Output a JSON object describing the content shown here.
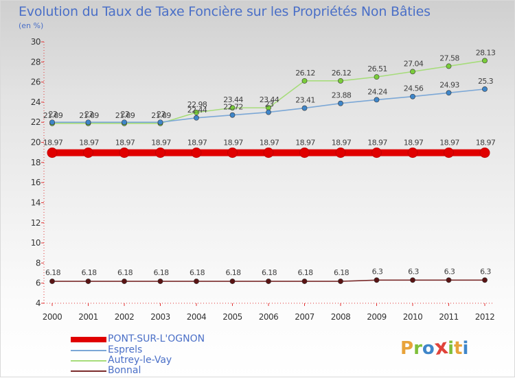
{
  "header": {
    "title": "Evolution du Taux de Taxe Foncière sur les Propriétés Non Bâties",
    "unit": "(en %)"
  },
  "chart_data": {
    "type": "line",
    "title": "Evolution du Taux de Taxe Foncière sur les Propriétés Non Bâties",
    "ylabel": "(en %)",
    "xlabel": "",
    "ylim": [
      4,
      30
    ],
    "yticks": [
      4,
      6,
      8,
      10,
      12,
      14,
      16,
      18,
      20,
      22,
      24,
      26,
      28,
      30
    ],
    "x": [
      "2000",
      "2001",
      "2002",
      "2003",
      "2004",
      "2005",
      "2006",
      "2007",
      "2008",
      "2009",
      "2010",
      "2011",
      "2012"
    ],
    "grid": false,
    "legend_position": "bottom-left",
    "series": [
      {
        "name": "PONT-SUR-L'OGNON",
        "color": "#e00000",
        "values": [
          18.97,
          18.97,
          18.97,
          18.97,
          18.97,
          18.97,
          18.97,
          18.97,
          18.97,
          18.97,
          18.97,
          18.97,
          18.97
        ],
        "labels": [
          "18.97",
          "18.97",
          "18.97",
          "18.97",
          "18.97",
          "18.97",
          "18.97",
          "18.97",
          "18.97",
          "18.97",
          "18.97",
          "18.97",
          "18.97"
        ]
      },
      {
        "name": "Esprels",
        "color": "#7ba7d6",
        "marker_color": "#3f86c9",
        "values": [
          22.0,
          22.0,
          22.0,
          22.0,
          22.44,
          22.72,
          23.0,
          23.41,
          23.88,
          24.24,
          24.56,
          24.93,
          25.3
        ],
        "labels": [
          "22",
          "22",
          "22",
          "22",
          "22.44",
          "22.72",
          "23",
          "23.41",
          "23.88",
          "24.24",
          "24.56",
          "24.93",
          "25.3"
        ]
      },
      {
        "name": "Autrey-le-Vay",
        "color": "#a6dc7a",
        "marker_color": "#7acc3a",
        "values": [
          21.89,
          21.89,
          21.89,
          21.89,
          22.98,
          23.44,
          23.44,
          26.12,
          26.12,
          26.51,
          27.04,
          27.58,
          28.13
        ],
        "labels": [
          "21.89",
          "21.89",
          "21.89",
          "21.89",
          "22.98",
          "23.44",
          "23.44",
          "26.12",
          "26.12",
          "26.51",
          "27.04",
          "27.58",
          "28.13"
        ]
      },
      {
        "name": "Bonnal",
        "color": "#7a2a2a",
        "marker_color": "#5a1414",
        "values": [
          6.18,
          6.18,
          6.18,
          6.18,
          6.18,
          6.18,
          6.18,
          6.18,
          6.18,
          6.3,
          6.3,
          6.3,
          6.3
        ],
        "labels": [
          "6.18",
          "6.18",
          "6.18",
          "6.18",
          "6.18",
          "6.18",
          "6.18",
          "6.18",
          "6.18",
          "6.3",
          "6.3",
          "6.3",
          "6.3"
        ]
      }
    ]
  },
  "legend": {
    "items": [
      {
        "label": "PONT-SUR-L'OGNON",
        "color": "#e00000"
      },
      {
        "label": "Esprels",
        "color": "#7ba7d6"
      },
      {
        "label": "Autrey-le-Vay",
        "color": "#a6dc7a"
      },
      {
        "label": "Bonnal",
        "color": "#7a2a2a"
      }
    ]
  },
  "branding": {
    "logo_text": "Proxiti",
    "logo_colors": [
      "#e8a33a",
      "#7fbf3a",
      "#3f86c9",
      "#e0433a",
      "#7fbf3a",
      "#e8a33a",
      "#3f86c9"
    ]
  }
}
